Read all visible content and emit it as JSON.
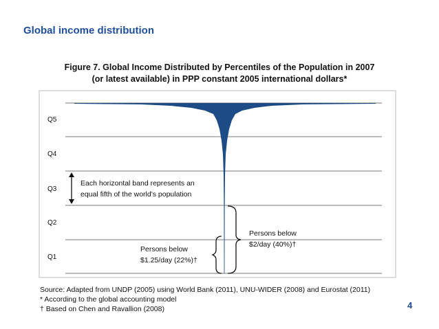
{
  "slide": {
    "title": "Global income distribution",
    "page_number": "4"
  },
  "chart_data": {
    "type": "area",
    "title_line1": "Figure 7. Global Income Distributed by Percentiles of the Population in 2007",
    "title_line2": "(or latest available) in PPP constant 2005 international dollars*",
    "bands": [
      "Q5",
      "Q4",
      "Q3",
      "Q2",
      "Q1"
    ],
    "band_note": [
      "Each horizontal band represents an",
      "equal fifth of the world's population"
    ],
    "annotation_2day": [
      "Persons below",
      "$2/day (40%)†"
    ],
    "annotation_125day": [
      "Persons below",
      "$1.25/day (22%)†"
    ],
    "population_below_2day_pct": 40,
    "population_below_125day_pct": 22,
    "source_lines": [
      "Source: Adapted from UNDP (2005) using World Bank (2011), UNU-WIDER (2008) and Eurostat (2011)",
      "* According to the global accounting model",
      "† Based on Chen and Ravallion (2008)"
    ],
    "colors": {
      "fill": "#1c4b86",
      "grid": "#7a7a7a",
      "text": "#111111"
    }
  }
}
